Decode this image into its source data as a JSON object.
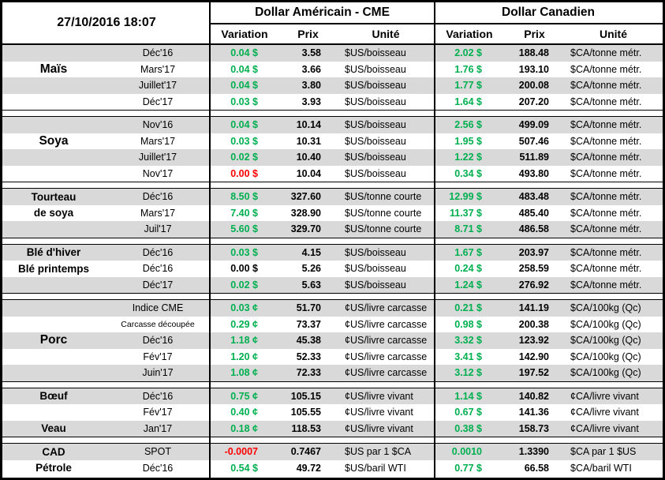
{
  "meta": {
    "date_label": "27/10/2016 18:07"
  },
  "blocks": {
    "us_title": "Dollar Américain - CME",
    "ca_title": "Dollar Canadien"
  },
  "columns": {
    "variation": "Variation",
    "prix": "Prix",
    "unite": "Unité"
  },
  "colors": {
    "up": "#00B050",
    "down": "#FF0000",
    "flat": "#000000",
    "stripe": "#D9D9D9"
  },
  "sections": [
    {
      "name": "Maïs",
      "rows": [
        {
          "cat": "",
          "contract": "Déc'16",
          "us_var": "0.04 $",
          "us_c": "up",
          "us_prix": "3.58",
          "us_unit": "$US/boisseau",
          "ca_var": "2.02 $",
          "ca_c": "up",
          "ca_prix": "188.48",
          "ca_unit": "$CA/tonne métr."
        },
        {
          "cat": "Maïs",
          "cat_big": true,
          "contract": "Mars'17",
          "us_var": "0.04 $",
          "us_c": "up",
          "us_prix": "3.66",
          "us_unit": "$US/boisseau",
          "ca_var": "1.76 $",
          "ca_c": "up",
          "ca_prix": "193.10",
          "ca_unit": "$CA/tonne métr."
        },
        {
          "cat": "",
          "contract": "Juillet'17",
          "us_var": "0.04 $",
          "us_c": "up",
          "us_prix": "3.80",
          "us_unit": "$US/boisseau",
          "ca_var": "1.77 $",
          "ca_c": "up",
          "ca_prix": "200.08",
          "ca_unit": "$CA/tonne métr."
        },
        {
          "cat": "",
          "contract": "Déc'17",
          "us_var": "0.03 $",
          "us_c": "up",
          "us_prix": "3.93",
          "us_unit": "$US/boisseau",
          "ca_var": "1.64 $",
          "ca_c": "up",
          "ca_prix": "207.20",
          "ca_unit": "$CA/tonne métr."
        }
      ]
    },
    {
      "name": "Soya",
      "rows": [
        {
          "cat": "",
          "contract": "Nov'16",
          "us_var": "0.04 $",
          "us_c": "up",
          "us_prix": "10.14",
          "us_unit": "$US/boisseau",
          "ca_var": "2.56 $",
          "ca_c": "up",
          "ca_prix": "499.09",
          "ca_unit": "$CA/tonne métr."
        },
        {
          "cat": "Soya",
          "cat_big": true,
          "contract": "Mars'17",
          "us_var": "0.03 $",
          "us_c": "up",
          "us_prix": "10.31",
          "us_unit": "$US/boisseau",
          "ca_var": "1.95 $",
          "ca_c": "up",
          "ca_prix": "507.46",
          "ca_unit": "$CA/tonne métr."
        },
        {
          "cat": "",
          "contract": "Juillet'17",
          "us_var": "0.02 $",
          "us_c": "up",
          "us_prix": "10.40",
          "us_unit": "$US/boisseau",
          "ca_var": "1.22 $",
          "ca_c": "up",
          "ca_prix": "511.89",
          "ca_unit": "$CA/tonne métr."
        },
        {
          "cat": "",
          "contract": "Nov'17",
          "us_var": "0.00 $",
          "us_c": "down",
          "us_prix": "10.04",
          "us_unit": "$US/boisseau",
          "ca_var": "0.34 $",
          "ca_c": "up",
          "ca_prix": "493.80",
          "ca_unit": "$CA/tonne métr."
        }
      ]
    },
    {
      "name": "Tourteau de soya",
      "rows": [
        {
          "cat": "Tourteau",
          "contract": "Déc'16",
          "us_var": "8.50 $",
          "us_c": "up",
          "us_prix": "327.60",
          "us_unit": "$US/tonne courte",
          "ca_var": "12.99 $",
          "ca_c": "up",
          "ca_prix": "483.48",
          "ca_unit": "$CA/tonne métr."
        },
        {
          "cat": "de soya",
          "contract": "Mars'17",
          "us_var": "7.40 $",
          "us_c": "up",
          "us_prix": "328.90",
          "us_unit": "$US/tonne courte",
          "ca_var": "11.37 $",
          "ca_c": "up",
          "ca_prix": "485.40",
          "ca_unit": "$CA/tonne métr."
        },
        {
          "cat": "",
          "contract": "Juil'17",
          "us_var": "5.60 $",
          "us_c": "up",
          "us_prix": "329.70",
          "us_unit": "$US/tonne courte",
          "ca_var": "8.71 $",
          "ca_c": "up",
          "ca_prix": "486.58",
          "ca_unit": "$CA/tonne métr."
        }
      ]
    },
    {
      "name": "Blé",
      "rows": [
        {
          "cat": "Blé d'hiver",
          "contract": "Déc'16",
          "us_var": "0.03 $",
          "us_c": "up",
          "us_prix": "4.15",
          "us_unit": "$US/boisseau",
          "ca_var": "1.67 $",
          "ca_c": "up",
          "ca_prix": "203.97",
          "ca_unit": "$CA/tonne métr."
        },
        {
          "cat": "Blé printemps",
          "contract": "Déc'16",
          "us_var": "0.00 $",
          "us_c": "flat",
          "us_prix": "5.26",
          "us_unit": "$US/boisseau",
          "ca_var": "0.24 $",
          "ca_c": "up",
          "ca_prix": "258.59",
          "ca_unit": "$CA/tonne métr."
        },
        {
          "cat": "",
          "contract": "Déc'17",
          "us_var": "0.02 $",
          "us_c": "up",
          "us_prix": "5.63",
          "us_unit": "$US/boisseau",
          "ca_var": "1.24 $",
          "ca_c": "up",
          "ca_prix": "276.92",
          "ca_unit": "$CA/tonne métr."
        }
      ]
    },
    {
      "name": "Porc",
      "rows": [
        {
          "cat": "",
          "contract": "Indice CME",
          "us_var": "0.03 ¢",
          "us_c": "up",
          "us_prix": "51.70",
          "us_unit": "¢US/livre carcasse",
          "ca_var": "0.21 $",
          "ca_c": "up",
          "ca_prix": "141.19",
          "ca_unit": "$CA/100kg (Qc)"
        },
        {
          "cat": "",
          "contract": "Carcasse découpée",
          "contract_small": true,
          "us_var": "0.29 ¢",
          "us_c": "up",
          "us_prix": "73.37",
          "us_unit": "¢US/livre carcasse",
          "ca_var": "0.98 $",
          "ca_c": "up",
          "ca_prix": "200.38",
          "ca_unit": "$CA/100kg (Qc)"
        },
        {
          "cat": "Porc",
          "cat_big": true,
          "contract": "Déc'16",
          "us_var": "1.18 ¢",
          "us_c": "up",
          "us_prix": "45.38",
          "us_unit": "¢US/livre carcasse",
          "ca_var": "3.32 $",
          "ca_c": "up",
          "ca_prix": "123.92",
          "ca_unit": "$CA/100kg (Qc)"
        },
        {
          "cat": "",
          "contract": "Fév'17",
          "us_var": "1.20 ¢",
          "us_c": "up",
          "us_prix": "52.33",
          "us_unit": "¢US/livre carcasse",
          "ca_var": "3.41 $",
          "ca_c": "up",
          "ca_prix": "142.90",
          "ca_unit": "$CA/100kg (Qc)"
        },
        {
          "cat": "",
          "contract": "Juin'17",
          "us_var": "1.08 ¢",
          "us_c": "up",
          "us_prix": "72.33",
          "us_unit": "¢US/livre carcasse",
          "ca_var": "3.12 $",
          "ca_c": "up",
          "ca_prix": "197.52",
          "ca_unit": "$CA/100kg (Qc)"
        }
      ]
    },
    {
      "name": "Bœuf / Veau",
      "rows": [
        {
          "cat": "Bœuf",
          "contract": "Déc'16",
          "us_var": "0.75 ¢",
          "us_c": "up",
          "us_prix": "105.15",
          "us_unit": "¢US/livre vivant",
          "ca_var": "1.14 $",
          "ca_c": "up",
          "ca_prix": "140.82",
          "ca_unit": "¢CA/livre vivant"
        },
        {
          "cat": "",
          "contract": "Fév'17",
          "us_var": "0.40 ¢",
          "us_c": "up",
          "us_prix": "105.55",
          "us_unit": "¢US/livre vivant",
          "ca_var": "0.67 $",
          "ca_c": "up",
          "ca_prix": "141.36",
          "ca_unit": "¢CA/livre vivant"
        },
        {
          "cat": "Veau",
          "contract": "Jan'17",
          "us_var": "0.18 ¢",
          "us_c": "up",
          "us_prix": "118.53",
          "us_unit": "¢US/livre vivant",
          "ca_var": "0.38 $",
          "ca_c": "up",
          "ca_prix": "158.73",
          "ca_unit": "¢CA/livre vivant"
        }
      ]
    },
    {
      "name": "CAD / Pétrole",
      "rows": [
        {
          "cat": "CAD",
          "contract": "SPOT",
          "us_var": "-0.0007",
          "us_c": "down",
          "us_prix": "0.7467",
          "us_unit": "$US par 1 $CA",
          "ca_var": "0.0010",
          "ca_c": "up",
          "ca_prix": "1.3390",
          "ca_unit": "$CA par 1 $US"
        },
        {
          "cat": "Pétrole",
          "contract": "Déc'16",
          "us_var": "0.54 $",
          "us_c": "up",
          "us_prix": "49.72",
          "us_unit": "$US/baril WTI",
          "ca_var": "0.77 $",
          "ca_c": "up",
          "ca_prix": "66.58",
          "ca_unit": "$CA/baril WTI"
        }
      ]
    }
  ]
}
